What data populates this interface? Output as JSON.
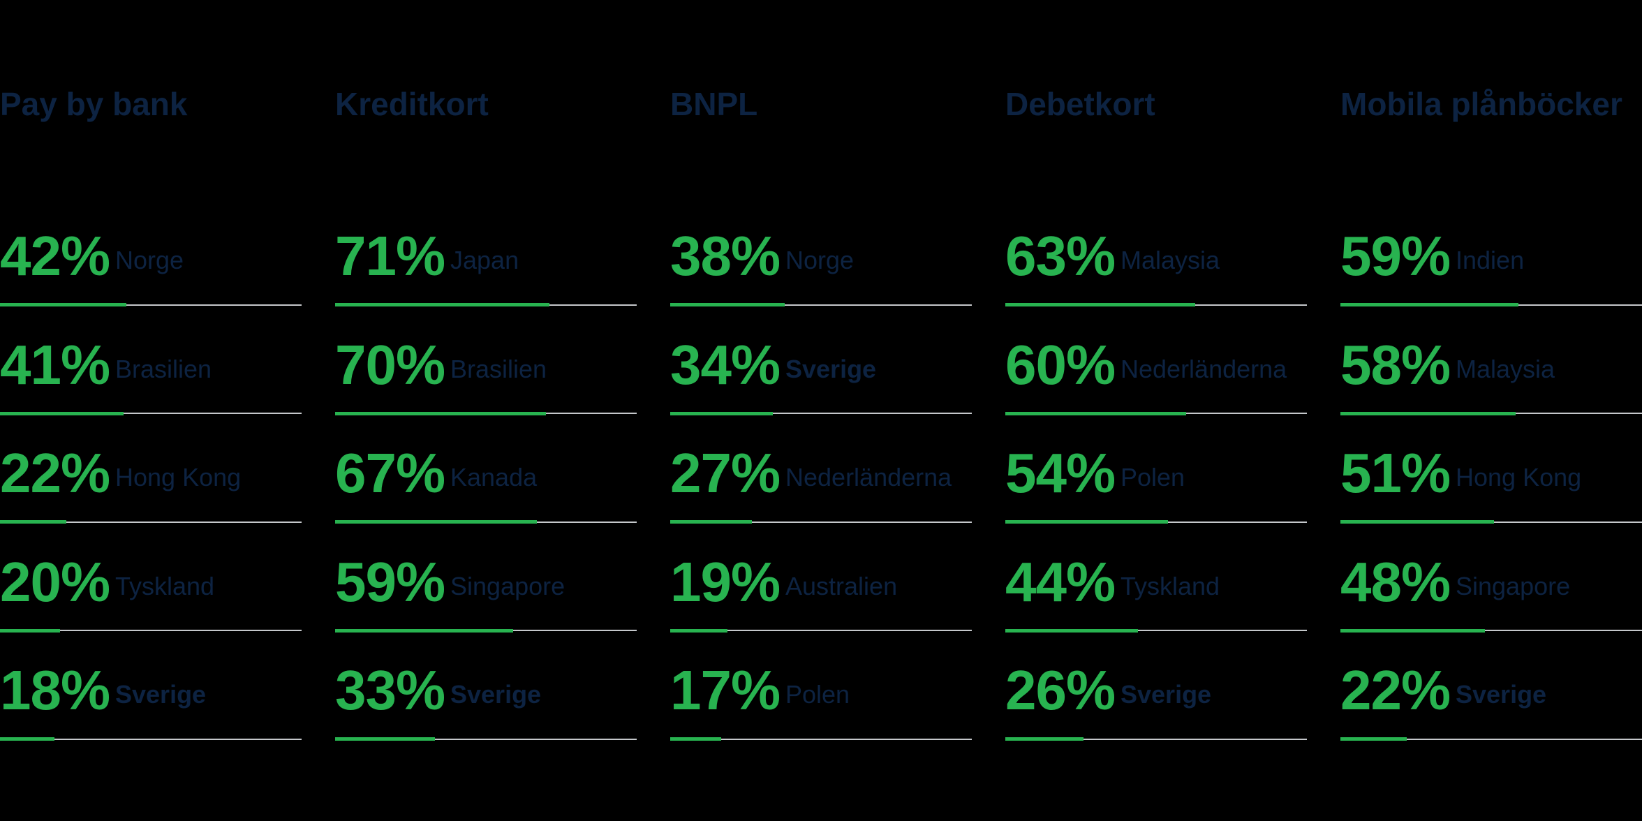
{
  "background": "#000000",
  "colors": {
    "accent_green": "#28b350",
    "navy": "#0d2342",
    "track_gray": "#c5c8cb"
  },
  "chart_data": {
    "type": "bar",
    "unit": "%",
    "orientation": "horizontal",
    "value_range": [
      0,
      100
    ],
    "groups": [
      {
        "title": "Pay by bank",
        "items": [
          {
            "value": 42,
            "value_label": "42%",
            "label": "Norge",
            "highlight": false
          },
          {
            "value": 41,
            "value_label": "41%",
            "label": "Brasilien",
            "highlight": false
          },
          {
            "value": 22,
            "value_label": "22%",
            "label": "Hong Kong",
            "highlight": false
          },
          {
            "value": 20,
            "value_label": "20%",
            "label": "Tyskland",
            "highlight": false
          },
          {
            "value": 18,
            "value_label": "18%",
            "label": "Sverige",
            "highlight": true
          }
        ]
      },
      {
        "title": "Kreditkort",
        "items": [
          {
            "value": 71,
            "value_label": "71%",
            "label": "Japan",
            "highlight": false
          },
          {
            "value": 70,
            "value_label": "70%",
            "label": "Brasilien",
            "highlight": false
          },
          {
            "value": 67,
            "value_label": "67%",
            "label": "Kanada",
            "highlight": false
          },
          {
            "value": 59,
            "value_label": "59%",
            "label": "Singapore",
            "highlight": false
          },
          {
            "value": 33,
            "value_label": "33%",
            "label": "Sverige",
            "highlight": true
          }
        ]
      },
      {
        "title": "BNPL",
        "items": [
          {
            "value": 38,
            "value_label": "38%",
            "label": "Norge",
            "highlight": false
          },
          {
            "value": 34,
            "value_label": "34%",
            "label": "Sverige",
            "highlight": true
          },
          {
            "value": 27,
            "value_label": "27%",
            "label": "Nederländerna",
            "highlight": false
          },
          {
            "value": 19,
            "value_label": "19%",
            "label": "Australien",
            "highlight": false
          },
          {
            "value": 17,
            "value_label": "17%",
            "label": "Polen",
            "highlight": false
          }
        ]
      },
      {
        "title": "Debetkort",
        "items": [
          {
            "value": 63,
            "value_label": "63%",
            "label": "Malaysia",
            "highlight": false
          },
          {
            "value": 60,
            "value_label": "60%",
            "label": "Nederländerna",
            "highlight": false
          },
          {
            "value": 54,
            "value_label": "54%",
            "label": "Polen",
            "highlight": false
          },
          {
            "value": 44,
            "value_label": "44%",
            "label": "Tyskland",
            "highlight": false
          },
          {
            "value": 26,
            "value_label": "26%",
            "label": "Sverige",
            "highlight": true
          }
        ]
      },
      {
        "title": "Mobila plånböcker",
        "items": [
          {
            "value": 59,
            "value_label": "59%",
            "label": "Indien",
            "highlight": false
          },
          {
            "value": 58,
            "value_label": "58%",
            "label": "Malaysia",
            "highlight": false
          },
          {
            "value": 51,
            "value_label": "51%",
            "label": "Hong Kong",
            "highlight": false
          },
          {
            "value": 48,
            "value_label": "48%",
            "label": "Singapore",
            "highlight": false
          },
          {
            "value": 22,
            "value_label": "22%",
            "label": "Sverige",
            "highlight": true
          }
        ]
      }
    ]
  }
}
